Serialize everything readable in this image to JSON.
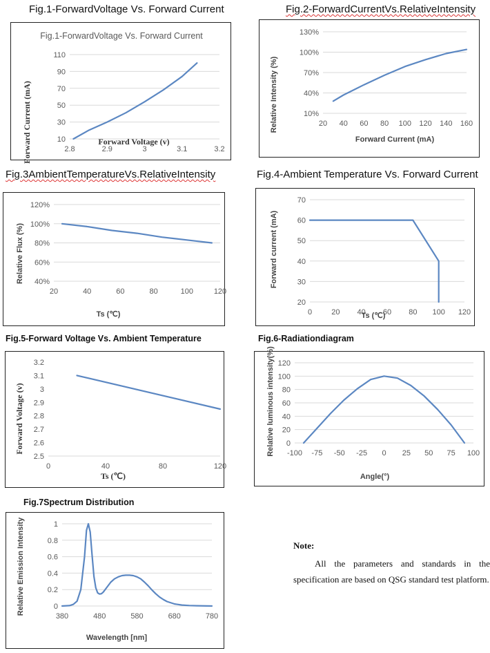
{
  "headings": {
    "fig1": "Fig.1-ForwardVoltage Vs. Forward Current",
    "fig2": "Fig.2-ForwardCurrentVs.RelativeIntensity",
    "fig3": "Fig.3AmbientTemperatureVs.RelativeIntensity",
    "fig4": "Fig.4-Ambient Temperature Vs. Forward Current",
    "fig5": "Fig.5-Forward Voltage Vs. Ambient Temperature",
    "fig6": "Fig.6-Radiationdiagram",
    "fig7": "Fig.7Spectrum Distribution"
  },
  "note": {
    "title": "Note:",
    "body": "All the parameters and standards in the specification are based on QSG standard test platform."
  },
  "line_color": "#5b87c2",
  "chart_data": [
    {
      "id": "fig1",
      "type": "line",
      "title": "Fig.1-ForwardVoltage Vs. Forward Current",
      "xlabel": "Forward Voltage (v)",
      "ylabel": "Forward Current (mA)",
      "xlim": [
        2.8,
        3.2
      ],
      "ylim": [
        10,
        110
      ],
      "xticks": [
        2.8,
        2.9,
        3,
        3.1,
        3.2
      ],
      "xtick_labels": [
        "2.8",
        "2.9",
        "3",
        "3.1",
        "3.2"
      ],
      "yticks": [
        10,
        30,
        50,
        70,
        90,
        110
      ],
      "ytick_labels": [
        "10",
        "30",
        "50",
        "70",
        "90",
        "110"
      ],
      "grid": true,
      "x": [
        2.81,
        2.85,
        2.9,
        2.95,
        3.0,
        3.05,
        3.1,
        3.14
      ],
      "y": [
        10,
        20,
        30,
        41,
        54,
        68,
        84,
        100
      ]
    },
    {
      "id": "fig2",
      "type": "line",
      "xlabel": "Forward Current (mA)",
      "ylabel": "Relative Intensity (%)",
      "xlim": [
        20,
        160
      ],
      "ylim": [
        10,
        130
      ],
      "xticks": [
        20,
        40,
        60,
        80,
        100,
        120,
        140,
        160
      ],
      "xtick_labels": [
        "20",
        "40",
        "60",
        "80",
        "100",
        "120",
        "140",
        "160"
      ],
      "yticks": [
        10,
        40,
        70,
        100,
        130
      ],
      "ytick_labels": [
        "10%",
        "40%",
        "70%",
        "100%",
        "130%"
      ],
      "grid": true,
      "x": [
        30,
        40,
        60,
        80,
        100,
        120,
        140,
        160
      ],
      "y": [
        28,
        37,
        52,
        66,
        79,
        89,
        98,
        104
      ]
    },
    {
      "id": "fig3",
      "type": "line",
      "xlabel": "Ts (℃)",
      "ylabel": "Relative Flux (%)",
      "xlim": [
        20,
        120
      ],
      "ylim": [
        40,
        120
      ],
      "xticks": [
        20,
        40,
        60,
        80,
        100,
        120
      ],
      "xtick_labels": [
        "20",
        "40",
        "60",
        "80",
        "100",
        "120"
      ],
      "yticks": [
        40,
        60,
        80,
        100,
        120
      ],
      "ytick_labels": [
        "40%",
        "60%",
        "80%",
        "100%",
        "120%"
      ],
      "grid": true,
      "x": [
        25,
        40,
        55,
        70,
        85,
        100,
        115
      ],
      "y": [
        100,
        97,
        93,
        90,
        86,
        83,
        80
      ]
    },
    {
      "id": "fig4",
      "type": "line",
      "xlabel": "Ts (℃)",
      "ylabel": "Forward current (mA)",
      "xlim": [
        0,
        120
      ],
      "ylim": [
        20,
        70
      ],
      "xticks": [
        0,
        20,
        40,
        60,
        80,
        100,
        120
      ],
      "xtick_labels": [
        "0",
        "20",
        "40",
        "60",
        "80",
        "100",
        "120"
      ],
      "yticks": [
        20,
        30,
        40,
        50,
        60,
        70
      ],
      "ytick_labels": [
        "20",
        "30",
        "40",
        "50",
        "60",
        "70"
      ],
      "grid": true,
      "x": [
        0,
        80,
        100,
        100
      ],
      "y": [
        60,
        60,
        40,
        20
      ]
    },
    {
      "id": "fig5",
      "type": "line",
      "xlabel": "Ts (℃)",
      "ylabel": "Forward Voltage (v)",
      "xlim": [
        0,
        120
      ],
      "ylim": [
        2.5,
        3.2
      ],
      "xticks": [
        0,
        40,
        80,
        120
      ],
      "xtick_labels": [
        "0",
        "40",
        "80",
        "120"
      ],
      "yticks": [
        2.5,
        2.6,
        2.7,
        2.8,
        2.9,
        3.0,
        3.1,
        3.2
      ],
      "ytick_labels": [
        "2.5",
        "2.6",
        "2.7",
        "2.8",
        "2.9",
        "3",
        "3.1",
        "3.2"
      ],
      "grid": false,
      "x": [
        20,
        120
      ],
      "y": [
        3.1,
        2.85
      ]
    },
    {
      "id": "fig6",
      "type": "line",
      "xlabel": "Angle(°)",
      "ylabel": "Relative luminous intensity(%)",
      "xlim": [
        -100,
        100
      ],
      "ylim": [
        0,
        120
      ],
      "xticks": [
        -100,
        -75,
        -50,
        -25,
        0,
        25,
        50,
        75,
        100
      ],
      "xtick_labels": [
        "-100",
        "-75",
        "-50",
        "-25",
        "0",
        "25",
        "50",
        "75",
        "100"
      ],
      "yticks": [
        0,
        20,
        40,
        60,
        80,
        100,
        120
      ],
      "ytick_labels": [
        "0",
        "20",
        "40",
        "60",
        "80",
        "100",
        "120"
      ],
      "grid": true,
      "x": [
        -90,
        -75,
        -60,
        -45,
        -30,
        -15,
        0,
        15,
        30,
        45,
        60,
        75,
        90
      ],
      "y": [
        0,
        22,
        44,
        64,
        81,
        95,
        100,
        97,
        86,
        70,
        50,
        27,
        0
      ]
    },
    {
      "id": "fig7",
      "type": "line",
      "xlabel": "Wavelength [nm]",
      "ylabel": "Relative Emission Intensity",
      "xlim": [
        380,
        780
      ],
      "ylim": [
        0,
        1
      ],
      "xticks": [
        380,
        480,
        580,
        680,
        780
      ],
      "xtick_labels": [
        "380",
        "480",
        "580",
        "680",
        "780"
      ],
      "yticks": [
        0,
        0.2,
        0.4,
        0.6,
        0.8,
        1
      ],
      "ytick_labels": [
        "0",
        "0.2",
        "0.4",
        "0.6",
        "0.8",
        "1"
      ],
      "grid": true,
      "x": [
        380,
        400,
        410,
        420,
        430,
        440,
        445,
        450,
        455,
        460,
        465,
        470,
        475,
        480,
        485,
        490,
        500,
        510,
        520,
        530,
        540,
        550,
        560,
        570,
        580,
        590,
        600,
        610,
        620,
        630,
        640,
        650,
        660,
        680,
        700,
        720,
        740,
        780
      ],
      "y": [
        0,
        0.005,
        0.02,
        0.06,
        0.2,
        0.6,
        0.92,
        1.0,
        0.9,
        0.62,
        0.36,
        0.22,
        0.16,
        0.145,
        0.15,
        0.17,
        0.23,
        0.29,
        0.33,
        0.355,
        0.37,
        0.375,
        0.375,
        0.37,
        0.355,
        0.33,
        0.29,
        0.245,
        0.195,
        0.15,
        0.11,
        0.08,
        0.055,
        0.025,
        0.012,
        0.006,
        0.003,
        0
      ]
    }
  ]
}
